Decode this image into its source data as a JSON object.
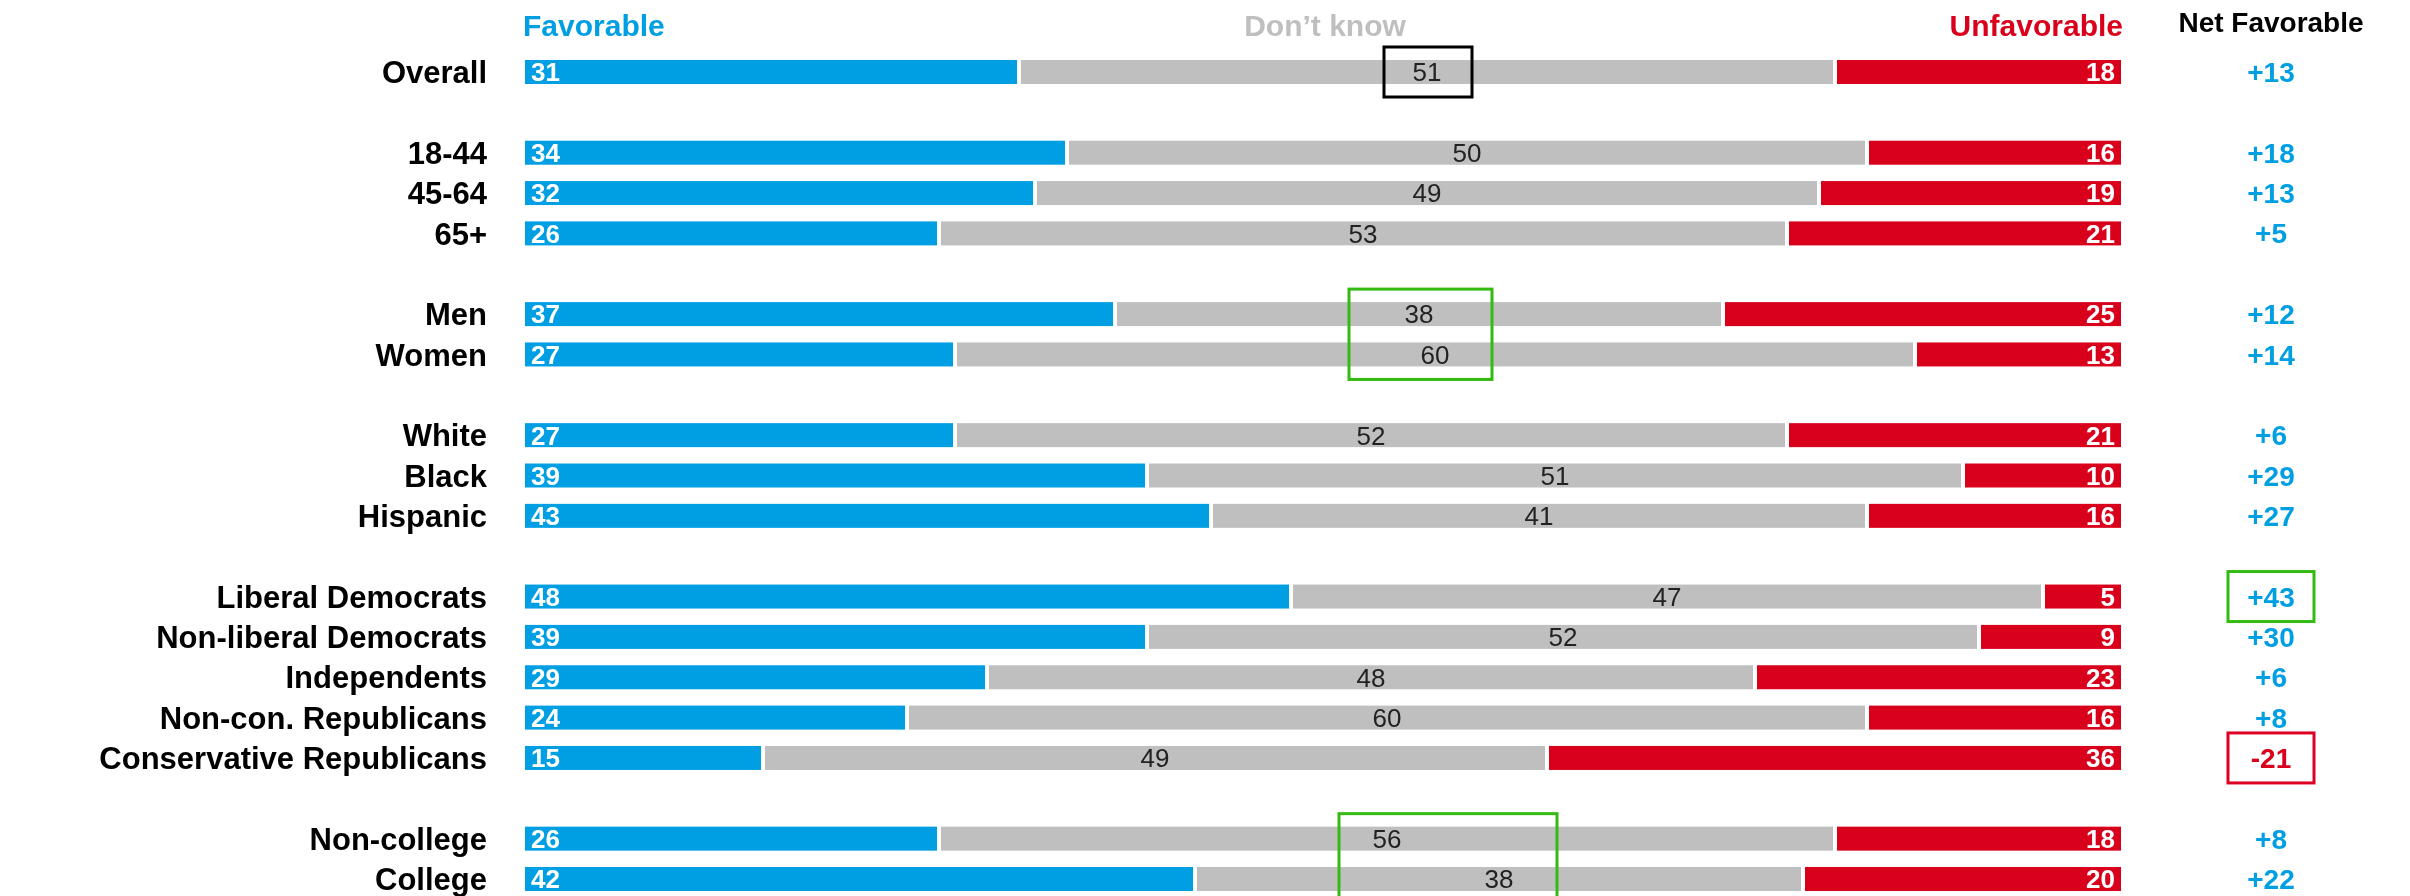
{
  "chart_data": {
    "type": "bar",
    "orientation": "horizontal",
    "stacked": true,
    "data_labels": true,
    "tick_labels": "y",
    "legend": "top",
    "categories": [
      "Overall",
      null,
      "18-44",
      "45-64",
      "65+",
      null,
      "Men",
      "Women",
      null,
      "White",
      "Black",
      "Hispanic",
      null,
      "Liberal Democrats",
      "Non-liberal Democrats",
      "Independents",
      "Non-con. Republicans",
      "Conservative Republicans",
      null,
      "Non-college",
      "College"
    ],
    "xlim": [
      0,
      100
    ],
    "series": [
      {
        "name": "Favorable",
        "color": "#009fe3",
        "values": [
          31,
          null,
          34,
          32,
          26,
          null,
          37,
          27,
          null,
          27,
          39,
          43,
          null,
          48,
          39,
          29,
          24,
          15,
          null,
          26,
          42
        ]
      },
      {
        "name": "Don’t know",
        "color": "#bfbfbf",
        "values": [
          51,
          null,
          50,
          49,
          53,
          null,
          38,
          60,
          null,
          52,
          51,
          41,
          null,
          47,
          52,
          48,
          60,
          49,
          null,
          56,
          38
        ]
      },
      {
        "name": "Unfavorable",
        "color": "#d9001b",
        "values": [
          18,
          null,
          16,
          19,
          21,
          null,
          25,
          13,
          null,
          21,
          10,
          16,
          null,
          5,
          9,
          23,
          16,
          36,
          null,
          18,
          20
        ]
      }
    ],
    "annotations": [
      "Net Favorable",
      "+13",
      "+18",
      "+13",
      "+5",
      "+12",
      "+14",
      "+6",
      "+29",
      "+27",
      "+43",
      "+30",
      "+6",
      "+8",
      "-21",
      "+8",
      "+22"
    ]
  }
}
